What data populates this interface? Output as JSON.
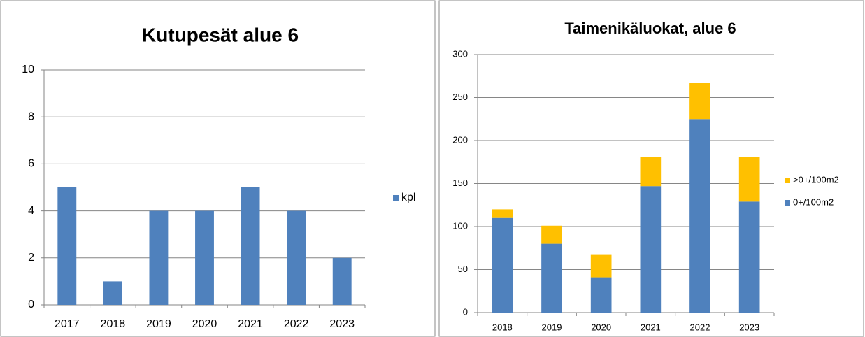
{
  "chart_data": [
    {
      "type": "bar",
      "title": "Kutupesät alue 6",
      "categories": [
        "2017",
        "2018",
        "2019",
        "2020",
        "2021",
        "2022",
        "2023"
      ],
      "series": [
        {
          "name": "kpl",
          "color": "#4f81bd",
          "values": [
            5,
            1,
            4,
            4,
            5,
            4,
            2
          ]
        }
      ],
      "ylim": [
        0,
        10
      ],
      "yticks": [
        0,
        2,
        4,
        6,
        8,
        10
      ],
      "grid": true,
      "legend": "right"
    },
    {
      "type": "bar",
      "stacked": true,
      "title": "Taimenikäluokat, alue 6",
      "categories": [
        "2018",
        "2019",
        "2020",
        "2021",
        "2022",
        "2023"
      ],
      "series": [
        {
          "name": "0+/100m2",
          "color": "#4f81bd",
          "values": [
            110,
            80,
            41,
            147,
            225,
            129
          ]
        },
        {
          "name": ">0+/100m2",
          "color": "#ffc000",
          "values": [
            10,
            21,
            26,
            34,
            42,
            52
          ]
        }
      ],
      "ylim": [
        0,
        300
      ],
      "yticks": [
        0,
        50,
        100,
        150,
        200,
        250,
        300
      ],
      "grid": true,
      "legend": "right"
    }
  ]
}
